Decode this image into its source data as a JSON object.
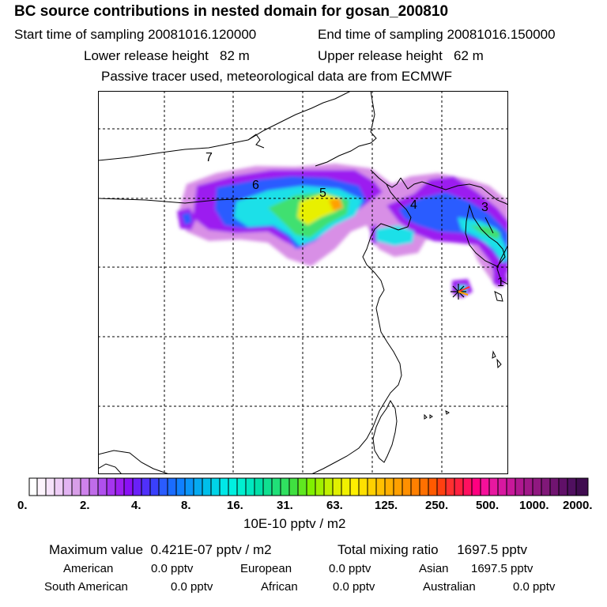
{
  "header": {
    "title": "BC  source contributions in nested domain for gosan_200810",
    "start_label": "Start time of sampling",
    "start_value": "20081016.120000",
    "end_label": "End time of sampling",
    "end_value": "20081016.150000",
    "lower_label": "Lower release height",
    "lower_value": "82 m",
    "upper_label": "Upper release height",
    "upper_value": "62 m",
    "tracer_line": "Passive tracer used, meteorological data are from ECMWF"
  },
  "map": {
    "region_labels": [
      "7",
      "6",
      "5",
      "4",
      "3",
      "1"
    ],
    "receptor_marker": "asterisk-star",
    "grid": true
  },
  "colorbar": {
    "tick_labels": [
      "0.",
      "2.",
      "4.",
      "8.",
      "16.",
      "31.",
      "63.",
      "125.",
      "250.",
      "500.",
      "1000.",
      "2000."
    ],
    "unit": "10E-10 pptv / m2",
    "colors": {
      "white-lavender": "#f6eafb",
      "light-purple": "#d89ee8",
      "purple": "#9a20f0",
      "blue": "#2a5cff",
      "cyan": "#00f0e8",
      "green": "#40e070",
      "yellow": "#f0f000",
      "orange": "#ffa000",
      "red": "#ff3030",
      "magenta": "#f0109a",
      "dark-purple": "#501050"
    }
  },
  "footer": {
    "max_label": "Maximum value",
    "max_value": "0.421E-07 pptv / m2",
    "total_label": "Total mixing ratio",
    "total_value": "1697.5 pptv",
    "american_label": "American",
    "american_value": "0.0 pptv",
    "european_label": "European",
    "european_value": "0.0 pptv",
    "asian_label": "Asian",
    "asian_value": "1697.5 pptv",
    "southam_label": "South American",
    "southam_value": "0.0 pptv",
    "african_label": "African",
    "african_value": "0.0 pptv",
    "australian_label": "Australian",
    "australian_value": "0.0 pptv"
  }
}
